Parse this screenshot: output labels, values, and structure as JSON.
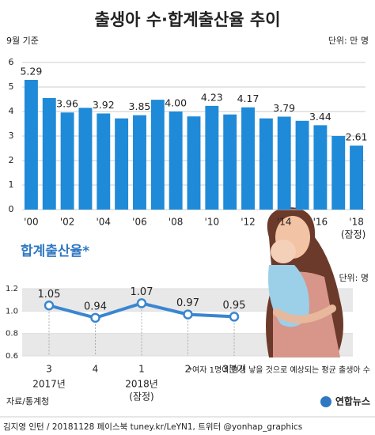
{
  "title": "출생아 수·합계출산율 추이",
  "source": "자료/통계청",
  "brand": "연합뉴스",
  "credit": "김지영 인턴 / 20181128 페이스북 tuney.kr/LeYN1, 트위터 @yonhap_graphics",
  "chart_data": [
    {
      "type": "bar",
      "note": "9월 기준",
      "unit": "단위: 만 명",
      "categories": [
        "'00",
        null,
        "'02",
        null,
        "'04",
        null,
        "'06",
        null,
        "'08",
        null,
        "'10",
        null,
        "'12",
        null,
        "'14",
        null,
        "'16",
        null,
        "'18"
      ],
      "values": [
        5.29,
        4.55,
        3.96,
        4.15,
        3.92,
        3.72,
        3.85,
        4.48,
        4.0,
        3.8,
        4.23,
        3.88,
        4.17,
        3.72,
        3.79,
        3.62,
        3.44,
        3.0,
        2.61
      ],
      "value_labels": [
        "5.29",
        null,
        "3.96",
        null,
        "3.92",
        null,
        "3.85",
        null,
        "4.00",
        null,
        "4.23",
        null,
        "4.17",
        null,
        "3.79",
        null,
        "3.44",
        null,
        "2.61"
      ],
      "provisional_label": "(잠정)",
      "color": "#1f8ad8",
      "ylim": [
        0,
        6
      ],
      "yticks": [
        0,
        1,
        2,
        3,
        4,
        5,
        6
      ],
      "grid": true
    },
    {
      "type": "line",
      "title": "합계출산율*",
      "unit": "단위: 명",
      "categories": [
        "3",
        "4",
        "1",
        "2",
        "3분기"
      ],
      "year_labels": [
        "2017년",
        null,
        "2018년",
        null,
        null
      ],
      "provisional_label": "(잠정)",
      "values": [
        1.05,
        0.94,
        1.07,
        0.97,
        0.95
      ],
      "color": "#3a86d0",
      "ylim": [
        0.6,
        1.2
      ],
      "yticks": [
        0.6,
        0.8,
        {
          "value": 1.0,
          "label": "1.0"
        },
        1.2
      ],
      "footnote": "*여자 1명이 평생 낳을 것으로 예상되는 평균 출생아 수"
    }
  ]
}
